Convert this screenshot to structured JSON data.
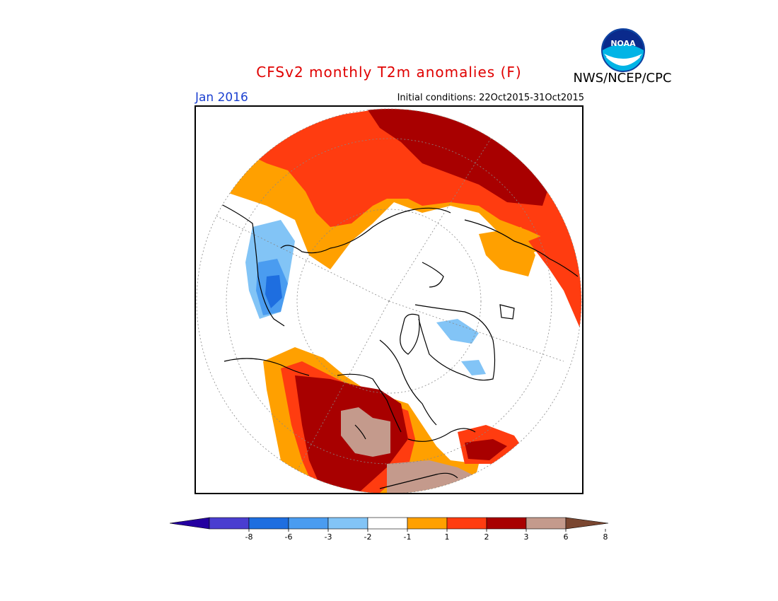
{
  "header": {
    "title": "CFSv2 monthly T2m anomalies (F)",
    "agency": "NWS/NCEP/CPC",
    "logo_text": "NOAA"
  },
  "subheader": {
    "month": "Jan 2016",
    "initial_conditions": "Initial conditions: 22Oct2015-31Oct2015"
  },
  "colorbar": {
    "ticks": [
      "-8",
      "-6",
      "-3",
      "-2",
      "-1",
      "1",
      "2",
      "3",
      "6",
      "8"
    ],
    "colors": [
      "#2400a0",
      "#4a3ed0",
      "#1e6ee0",
      "#4a9cf0",
      "#82c4f6",
      "#ffffff",
      "#ffa000",
      "#ff3c10",
      "#a80000",
      "#c49a8c",
      "#7a4630"
    ]
  },
  "map": {
    "projection": "north polar stereographic",
    "colors": {
      "ocean": "#ffffff",
      "warm1": "#ffa000",
      "warm2": "#ff3c10",
      "warm3": "#a80000",
      "warm4": "#c49a8c",
      "cool1": "#82c4f6",
      "cool2": "#4a9cf0",
      "cool3": "#1e6ee0"
    }
  }
}
